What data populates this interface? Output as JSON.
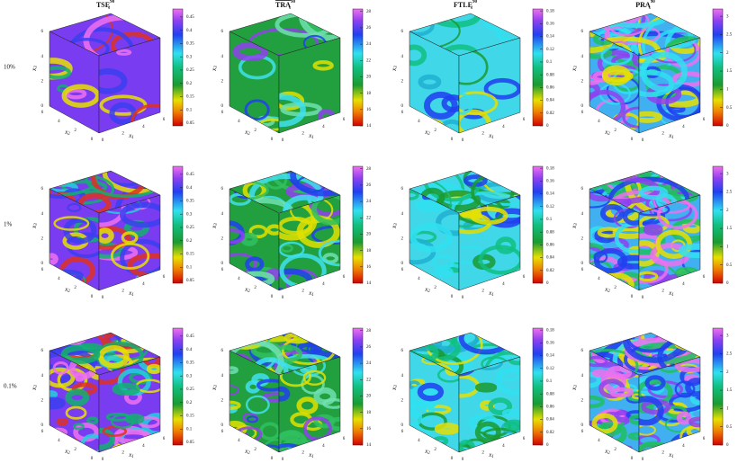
{
  "rows": [
    {
      "label": "10%"
    },
    {
      "label": "1%"
    },
    {
      "label": "0.1%"
    }
  ],
  "columns": [
    {
      "title": {
        "main": "TSE",
        "sub": "s",
        "sup": "90"
      },
      "colorbar": {
        "lim": [
          0.04,
          0.48
        ],
        "ticks": [
          0.05,
          0.1,
          0.15,
          0.2,
          0.25,
          0.3,
          0.35,
          0.4,
          0.45
        ]
      }
    },
    {
      "title": {
        "main": "TRA",
        "sub": "s",
        "sup": "90"
      },
      "colorbar": {
        "lim": [
          14,
          28.3
        ],
        "ticks": [
          14,
          16,
          18,
          20,
          22,
          24,
          26,
          28
        ]
      }
    },
    {
      "title": {
        "main": "FTLE",
        "sub": "s",
        "sup": "90"
      },
      "colorbar": {
        "lim": [
          0,
          0.183
        ],
        "ticks": [
          0,
          0.02,
          0.04,
          0.06,
          0.08,
          0.1,
          0.12,
          0.14,
          0.16,
          0.18
        ]
      }
    },
    {
      "title": {
        "main": "PRA",
        "sub": "s",
        "sup": "90"
      },
      "colorbar": {
        "lim": [
          0,
          3.2
        ],
        "ticks": [
          0,
          0.5,
          1,
          1.5,
          2,
          2.5,
          3
        ]
      }
    }
  ],
  "axes": {
    "x1": {
      "label": "x",
      "sub": "1"
    },
    "x2": {
      "label": "x",
      "sub": "2"
    },
    "x3": {
      "label": "x",
      "sub": "3"
    },
    "ticks": [
      0,
      2,
      4,
      6
    ]
  }
}
